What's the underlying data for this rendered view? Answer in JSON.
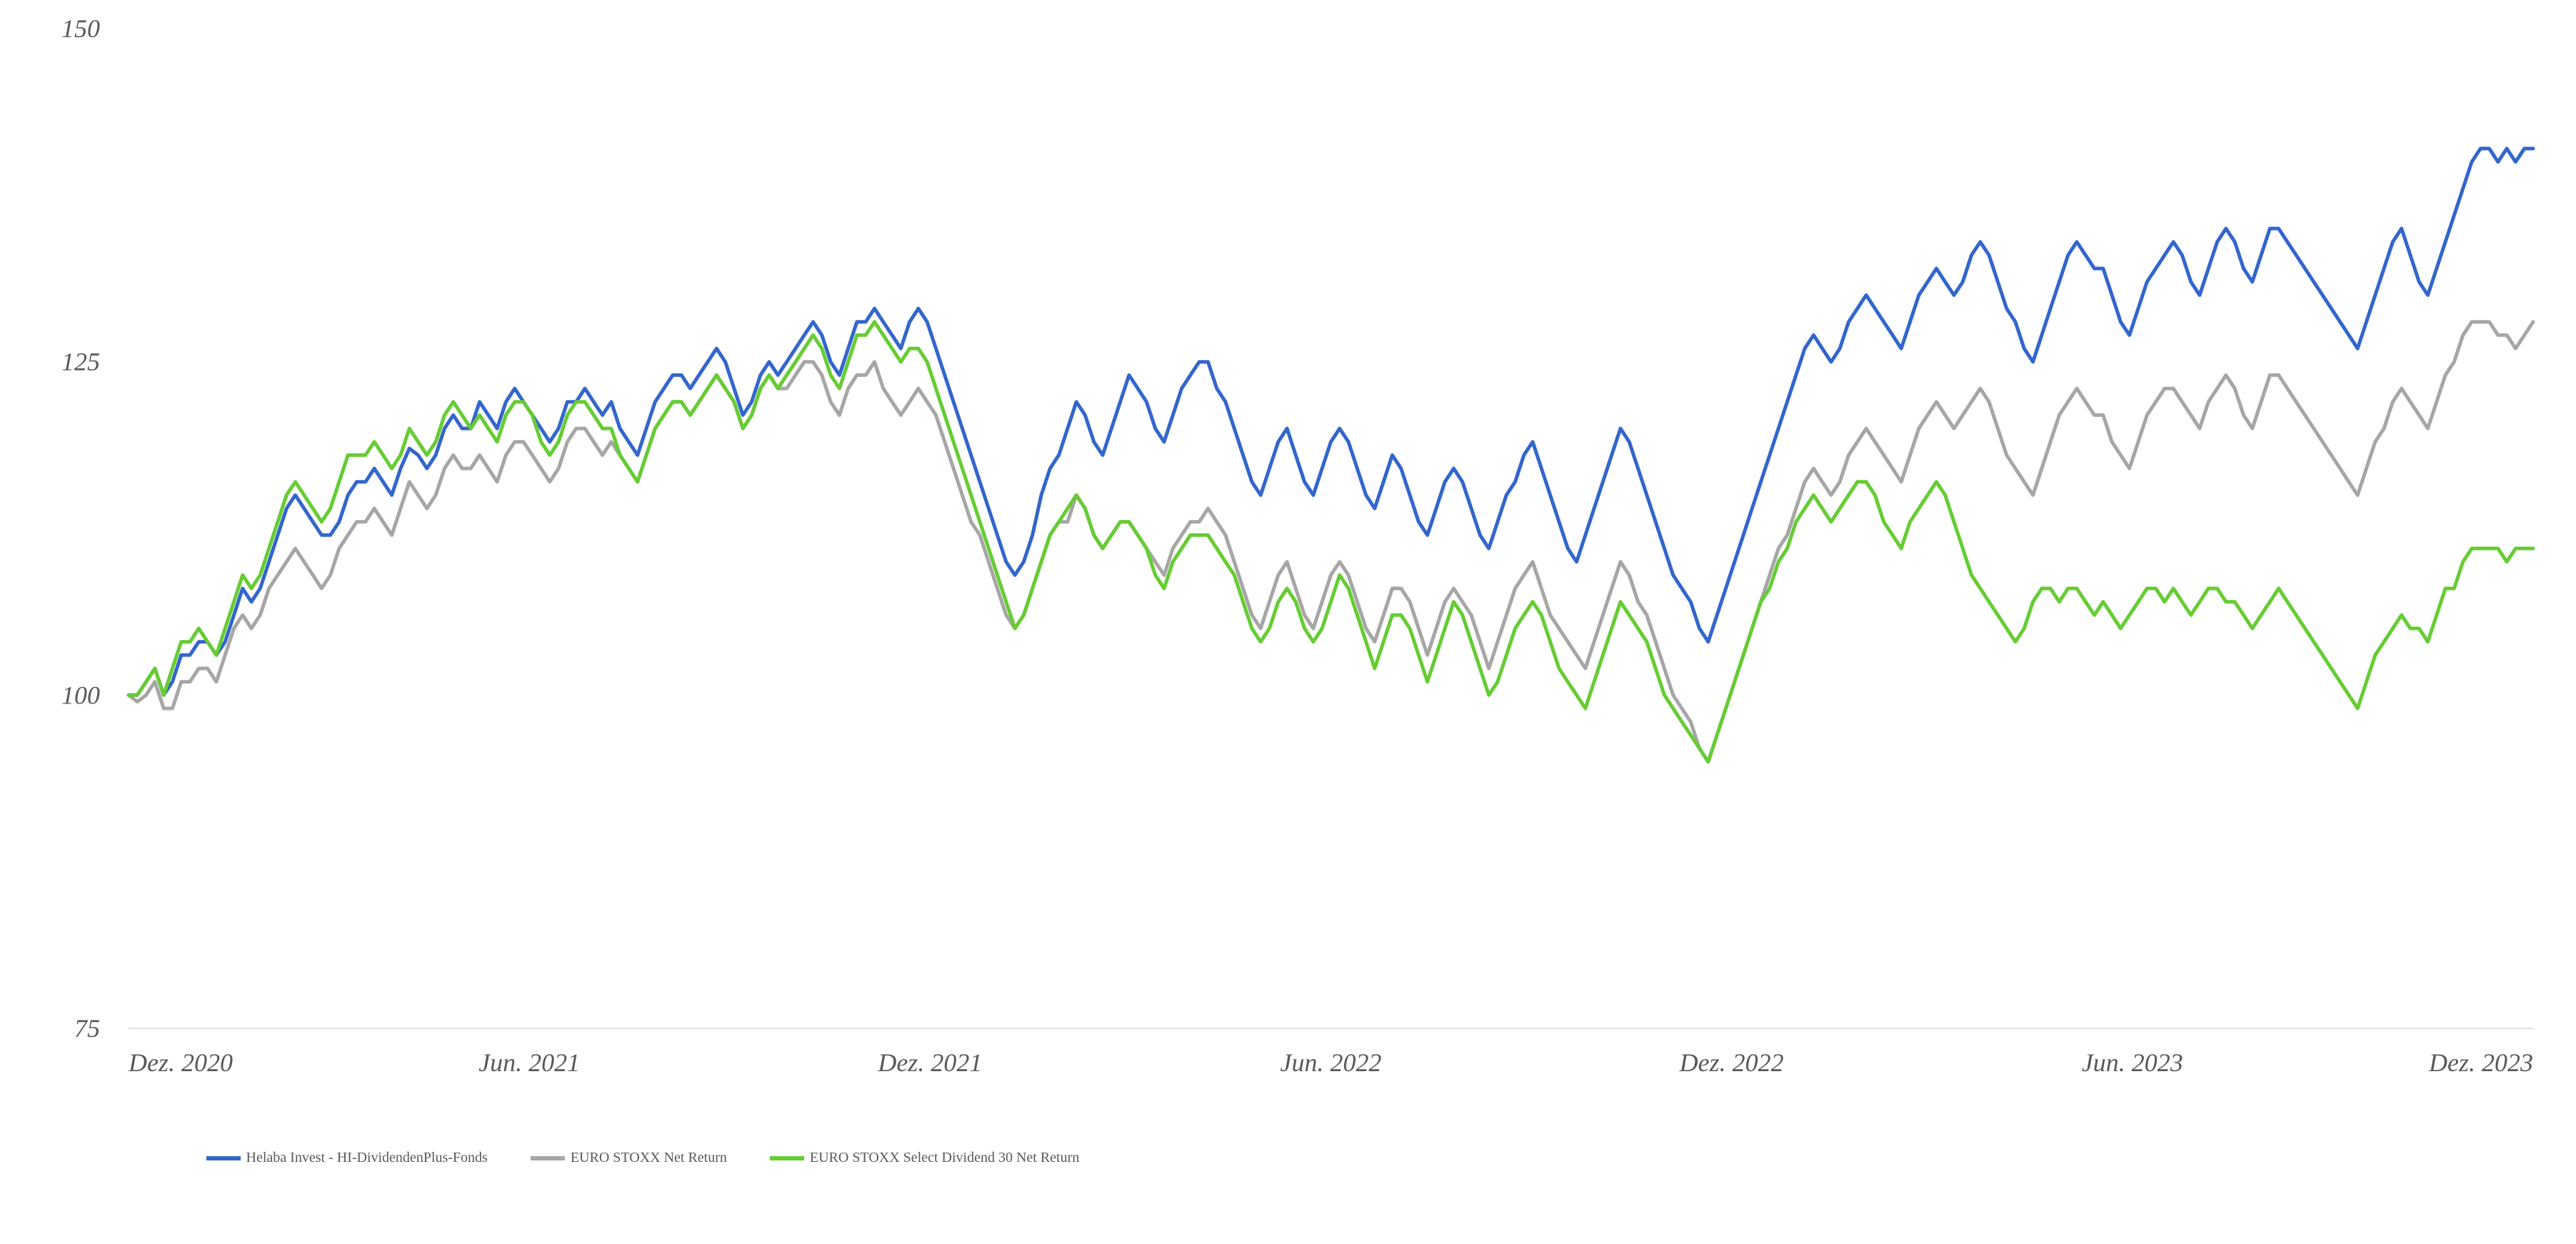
{
  "chart": {
    "type": "line",
    "background_color": "#ffffff",
    "grid_color": "#e0e0e0",
    "axis_text_color": "#595959",
    "tick_font_style": "italic",
    "axis_fontsize": 36,
    "legend_fontsize": 34,
    "line_width": 5,
    "ylim": [
      75,
      150
    ],
    "yticks": [
      75,
      100,
      125,
      150
    ],
    "ytick_labels": [
      "75",
      "100",
      "125",
      "150"
    ],
    "xlim": [
      0,
      36
    ],
    "xticks": [
      0,
      6,
      12,
      18,
      24,
      30,
      36
    ],
    "xtick_labels": [
      "Dez. 2020",
      "Jun. 2021",
      "Dez. 2021",
      "Jun. 2022",
      "Dez. 2022",
      "Jun. 2023",
      "Dez. 2023"
    ],
    "series": [
      {
        "id": "helaba",
        "label": "Helaba Invest - HI-DividendenPlus-Fonds",
        "color": "#3366cc",
        "data": [
          100,
          100,
          101,
          102,
          100,
          101,
          103,
          103,
          104,
          104,
          103,
          104,
          106,
          108,
          107,
          108,
          110,
          112,
          114,
          115,
          114,
          113,
          112,
          112,
          113,
          115,
          116,
          116,
          117,
          116,
          115,
          117,
          118.5,
          118,
          117,
          118,
          120,
          121,
          120,
          120,
          122,
          121,
          120,
          122,
          123,
          122,
          121,
          120,
          119,
          120,
          122,
          122,
          123,
          122,
          121,
          122,
          120,
          119,
          118,
          120,
          122,
          123,
          124,
          124,
          123,
          124,
          125,
          126,
          125,
          123,
          121,
          122,
          124,
          125,
          124,
          125,
          126,
          127,
          128,
          127,
          125,
          124,
          126,
          128,
          128,
          129,
          128,
          127,
          126,
          128,
          129,
          128,
          126,
          124,
          122,
          120,
          118,
          116,
          114,
          112,
          110,
          109,
          110,
          112,
          115,
          117,
          118,
          120,
          122,
          121,
          119,
          118,
          120,
          122,
          124,
          123,
          122,
          120,
          119,
          121,
          123,
          124,
          125,
          125,
          123,
          122,
          120,
          118,
          116,
          115,
          117,
          119,
          120,
          118,
          116,
          115,
          117,
          119,
          120,
          119,
          117,
          115,
          114,
          116,
          118,
          117,
          115,
          113,
          112,
          114,
          116,
          117,
          116,
          114,
          112,
          111,
          113,
          115,
          116,
          118,
          119,
          117,
          115,
          113,
          111,
          110,
          112,
          114,
          116,
          118,
          120,
          119,
          117,
          115,
          113,
          111,
          109,
          108,
          107,
          105,
          104,
          106,
          108,
          110,
          112,
          114,
          116,
          118,
          120,
          122,
          124,
          126,
          127,
          126,
          125,
          126,
          128,
          129,
          130,
          129,
          128,
          127,
          126,
          128,
          130,
          131,
          132,
          131,
          130,
          131,
          133,
          134,
          133,
          131,
          129,
          128,
          126,
          125,
          127,
          129,
          131,
          133,
          134,
          133,
          132,
          132,
          130,
          128,
          127,
          129,
          131,
          132,
          133,
          134,
          133,
          131,
          130,
          132,
          134,
          135,
          134,
          132,
          131,
          133,
          135,
          135,
          134,
          133,
          132,
          131,
          130,
          129,
          128,
          127,
          126,
          128,
          130,
          132,
          134,
          135,
          133,
          131,
          130,
          132,
          134,
          136,
          138,
          140,
          141,
          141,
          140,
          141,
          140,
          141,
          141
        ]
      },
      {
        "id": "eurostoxx",
        "label": "EURO STOXX Net Return",
        "color": "#a6a6a6",
        "data": [
          100,
          99.5,
          100,
          101,
          99,
          99,
          101,
          101,
          102,
          102,
          101,
          103,
          105,
          106,
          105,
          106,
          108,
          109,
          110,
          111,
          110,
          109,
          108,
          109,
          111,
          112,
          113,
          113,
          114,
          113,
          112,
          114,
          116,
          115,
          114,
          115,
          117,
          118,
          117,
          117,
          118,
          117,
          116,
          118,
          119,
          119,
          118,
          117,
          116,
          117,
          119,
          120,
          120,
          119,
          118,
          119,
          118,
          117,
          116,
          118,
          120,
          121,
          122,
          122,
          121,
          122,
          123,
          124,
          123,
          122,
          120,
          121,
          123,
          124,
          123,
          123,
          124,
          125,
          125,
          124,
          122,
          121,
          123,
          124,
          124,
          125,
          123,
          122,
          121,
          122,
          123,
          122,
          121,
          119,
          117,
          115,
          113,
          112,
          110,
          108,
          106,
          105,
          106,
          108,
          110,
          112,
          113,
          113,
          115,
          114,
          112,
          111,
          112,
          113,
          113,
          112,
          111,
          110,
          109,
          111,
          112,
          113,
          113,
          114,
          113,
          112,
          110,
          108,
          106,
          105,
          107,
          109,
          110,
          108,
          106,
          105,
          107,
          109,
          110,
          109,
          107,
          105,
          104,
          106,
          108,
          108,
          107,
          105,
          103,
          105,
          107,
          108,
          107,
          106,
          104,
          102,
          104,
          106,
          108,
          109,
          110,
          108,
          106,
          105,
          104,
          103,
          102,
          104,
          106,
          108,
          110,
          109,
          107,
          106,
          104,
          102,
          100,
          99,
          98,
          96,
          95,
          97,
          99,
          101,
          103,
          105,
          107,
          109,
          111,
          112,
          114,
          116,
          117,
          116,
          115,
          116,
          118,
          119,
          120,
          119,
          118,
          117,
          116,
          118,
          120,
          121,
          122,
          121,
          120,
          121,
          122,
          123,
          122,
          120,
          118,
          117,
          116,
          115,
          117,
          119,
          121,
          122,
          123,
          122,
          121,
          121,
          119,
          118,
          117,
          119,
          121,
          122,
          123,
          123,
          122,
          121,
          120,
          122,
          123,
          124,
          123,
          121,
          120,
          122,
          124,
          124,
          123,
          122,
          121,
          120,
          119,
          118,
          117,
          116,
          115,
          117,
          119,
          120,
          122,
          123,
          122,
          121,
          120,
          122,
          124,
          125,
          127,
          128,
          128,
          128,
          127,
          127,
          126,
          127,
          128
        ]
      },
      {
        "id": "select30",
        "label": "EURO STOXX Select Dividend 30 Net Return",
        "color": "#66cc33",
        "data": [
          100,
          100,
          101,
          102,
          100,
          102,
          104,
          104,
          105,
          104,
          103,
          105,
          107,
          109,
          108,
          109,
          111,
          113,
          115,
          116,
          115,
          114,
          113,
          114,
          116,
          118,
          118,
          118,
          119,
          118,
          117,
          118,
          120,
          119,
          118,
          119,
          121,
          122,
          121,
          120,
          121,
          120,
          119,
          121,
          122,
          122,
          121,
          119,
          118,
          119,
          121,
          122,
          122,
          121,
          120,
          120,
          118,
          117,
          116,
          118,
          120,
          121,
          122,
          122,
          121,
          122,
          123,
          124,
          123,
          122,
          120,
          121,
          123,
          124,
          123,
          124,
          125,
          126,
          127,
          126,
          124,
          123,
          125,
          127,
          127,
          128,
          127,
          126,
          125,
          126,
          126,
          125,
          123,
          121,
          119,
          117,
          115,
          113,
          111,
          109,
          107,
          105,
          106,
          108,
          110,
          112,
          113,
          114,
          115,
          114,
          112,
          111,
          112,
          113,
          113,
          112,
          111,
          109,
          108,
          110,
          111,
          112,
          112,
          112,
          111,
          110,
          109,
          107,
          105,
          104,
          105,
          107,
          108,
          107,
          105,
          104,
          105,
          107,
          109,
          108,
          106,
          104,
          102,
          104,
          106,
          106,
          105,
          103,
          101,
          103,
          105,
          107,
          106,
          104,
          102,
          100,
          101,
          103,
          105,
          106,
          107,
          106,
          104,
          102,
          101,
          100,
          99,
          101,
          103,
          105,
          107,
          106,
          105,
          104,
          102,
          100,
          99,
          98,
          97,
          96,
          95,
          97,
          99,
          101,
          103,
          105,
          107,
          108,
          110,
          111,
          113,
          114,
          115,
          114,
          113,
          114,
          115,
          116,
          116,
          115,
          113,
          112,
          111,
          113,
          114,
          115,
          116,
          115,
          113,
          111,
          109,
          108,
          107,
          106,
          105,
          104,
          105,
          107,
          108,
          108,
          107,
          108,
          108,
          107,
          106,
          107,
          106,
          105,
          106,
          107,
          108,
          108,
          107,
          108,
          107,
          106,
          107,
          108,
          108,
          107,
          107,
          106,
          105,
          106,
          107,
          108,
          107,
          106,
          105,
          104,
          103,
          102,
          101,
          100,
          99,
          101,
          103,
          104,
          105,
          106,
          105,
          105,
          104,
          106,
          108,
          108,
          110,
          111,
          111,
          111,
          111,
          110,
          111,
          111,
          111
        ]
      }
    ],
    "legend": {
      "position": "bottom",
      "items": [
        {
          "series": "helaba"
        },
        {
          "series": "eurostoxx"
        },
        {
          "series": "select30"
        }
      ]
    }
  }
}
